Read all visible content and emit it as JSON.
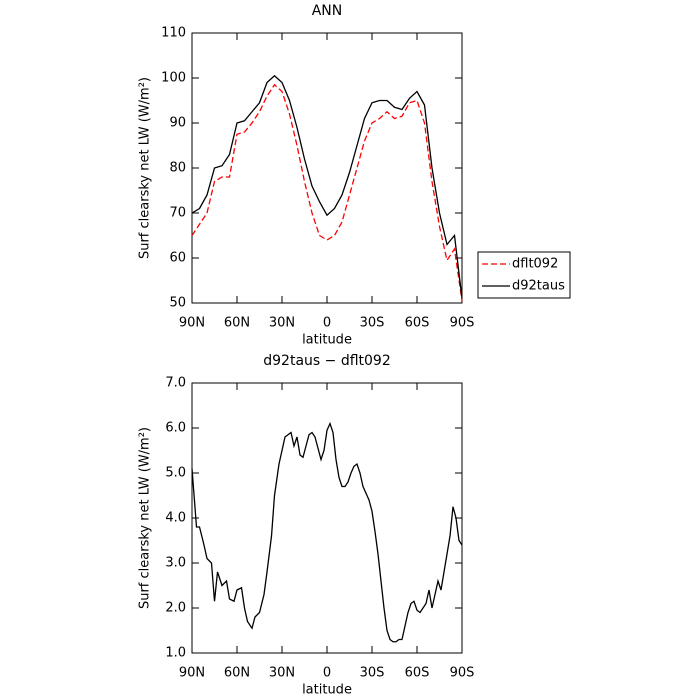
{
  "chart_data": [
    {
      "type": "line",
      "title": "ANN",
      "x_label": "latitude",
      "y_label": "Surf clearsky net LW (W/m²)",
      "x": [
        90,
        85,
        80,
        75,
        70,
        65,
        60,
        55,
        50,
        45,
        40,
        35,
        30,
        25,
        20,
        15,
        10,
        5,
        0,
        -5,
        -10,
        -15,
        -20,
        -25,
        -30,
        -35,
        -40,
        -45,
        -50,
        -55,
        -60,
        -65,
        -70,
        -75,
        -80,
        -85,
        -90
      ],
      "series": [
        {
          "name": "dflt092",
          "color": "#ff0000",
          "dash": true,
          "values": [
            65,
            67.5,
            70,
            77,
            78,
            78,
            87.5,
            88,
            90,
            92.5,
            96,
            98.5,
            97,
            92,
            85,
            77,
            70,
            65,
            64,
            65,
            68,
            74,
            80,
            86,
            90,
            91,
            92.5,
            91,
            91.5,
            94.5,
            95,
            90,
            77,
            67,
            59.5,
            62,
            50.5
          ]
        },
        {
          "name": "d92taus",
          "color": "#000000",
          "dash": false,
          "values": [
            70,
            71,
            74,
            80,
            80.5,
            83,
            90,
            90.5,
            92.5,
            94.5,
            99,
            100.5,
            99,
            95,
            89,
            82,
            76,
            72.5,
            69.5,
            71,
            74,
            79,
            85,
            91,
            94.5,
            95,
            95,
            93.5,
            93,
            95.5,
            97,
            94,
            80,
            70,
            63,
            65,
            51
          ]
        }
      ],
      "xlim": [
        90,
        -90
      ],
      "xticks": [
        {
          "value": 90,
          "label": "90N"
        },
        {
          "value": 60,
          "label": "60N"
        },
        {
          "value": 30,
          "label": "30N"
        },
        0,
        {
          "value": -30,
          "label": "30S"
        },
        {
          "value": -60,
          "label": "60S"
        },
        {
          "value": -90,
          "label": "90S"
        }
      ],
      "ylim": [
        50,
        110
      ],
      "yticks": [
        50,
        60,
        70,
        80,
        90,
        100,
        110
      ],
      "legend": "right"
    },
    {
      "type": "line",
      "title": "d92taus − dflt092",
      "x_label": "latitude",
      "y_label": "Surf clearsky net LW (W/m²)",
      "x": [
        90,
        87,
        85,
        82,
        80,
        77,
        75,
        73,
        70,
        67,
        65,
        62,
        60,
        57,
        55,
        53,
        50,
        48,
        45,
        42,
        40,
        37,
        35,
        32,
        30,
        28,
        26,
        24,
        22,
        20,
        18,
        16,
        14,
        12,
        10,
        8,
        6,
        4,
        2,
        0,
        -2,
        -4,
        -6,
        -8,
        -10,
        -12,
        -14,
        -16,
        -18,
        -20,
        -22,
        -24,
        -26,
        -28,
        -30,
        -32,
        -34,
        -36,
        -38,
        -40,
        -42,
        -44,
        -46,
        -48,
        -50,
        -52,
        -54,
        -56,
        -58,
        -60,
        -62,
        -64,
        -66,
        -68,
        -70,
        -72,
        -74,
        -76,
        -78,
        -80,
        -82,
        -84,
        -86,
        -88,
        -90
      ],
      "series": [
        {
          "color": "#000000",
          "dash": false,
          "values": [
            5.1,
            3.8,
            3.8,
            3.4,
            3.1,
            3.0,
            2.15,
            2.8,
            2.5,
            2.6,
            2.2,
            2.15,
            2.4,
            2.45,
            2.0,
            1.7,
            1.55,
            1.8,
            1.9,
            2.3,
            2.8,
            3.6,
            4.5,
            5.2,
            5.5,
            5.8,
            5.85,
            5.9,
            5.6,
            5.8,
            5.4,
            5.35,
            5.6,
            5.85,
            5.9,
            5.8,
            5.55,
            5.3,
            5.5,
            5.95,
            6.1,
            5.9,
            5.3,
            4.9,
            4.7,
            4.7,
            4.8,
            5.0,
            5.15,
            5.2,
            5.0,
            4.7,
            4.55,
            4.4,
            4.15,
            3.7,
            3.2,
            2.6,
            2.0,
            1.5,
            1.3,
            1.25,
            1.25,
            1.3,
            1.3,
            1.6,
            1.9,
            2.1,
            2.15,
            1.95,
            1.9,
            2.0,
            2.1,
            2.4,
            2.0,
            2.3,
            2.6,
            2.4,
            2.8,
            3.2,
            3.6,
            4.25,
            4.0,
            3.5,
            3.4
          ]
        }
      ],
      "xlim": [
        90,
        -90
      ],
      "xticks": [
        {
          "value": 90,
          "label": "90N"
        },
        {
          "value": 60,
          "label": "60N"
        },
        {
          "value": 30,
          "label": "30N"
        },
        0,
        {
          "value": -30,
          "label": "30S"
        },
        {
          "value": -60,
          "label": "60S"
        },
        {
          "value": -90,
          "label": "90S"
        }
      ],
      "ylim": [
        1,
        7
      ],
      "yticks": [
        {
          "value": 1,
          "label": "1.0"
        },
        {
          "value": 2,
          "label": "2.0"
        },
        {
          "value": 3,
          "label": "3.0"
        },
        {
          "value": 4,
          "label": "4.0"
        },
        {
          "value": 5,
          "label": "5.0"
        },
        {
          "value": 6,
          "label": "6.0"
        },
        {
          "value": 7,
          "label": "7.0"
        }
      ]
    }
  ]
}
